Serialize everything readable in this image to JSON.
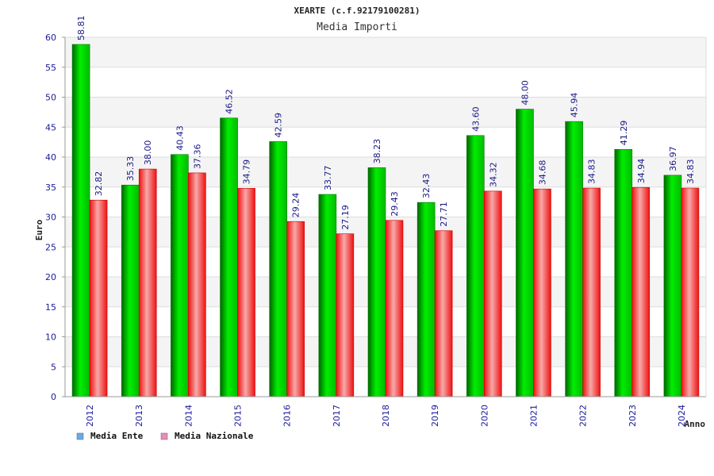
{
  "chart_data": {
    "type": "bar",
    "title": "XEARTE (c.f.92179100281)",
    "subtitle": "Media Importi",
    "xlabel": "Anno",
    "ylabel": "Euro",
    "ylim": [
      0,
      60
    ],
    "yticks": [
      0,
      5,
      10,
      15,
      20,
      25,
      30,
      35,
      40,
      45,
      50,
      55,
      60
    ],
    "grid": true,
    "legend_position": "bottom-left",
    "categories": [
      "2012",
      "2013",
      "2014",
      "2015",
      "2016",
      "2017",
      "2018",
      "2019",
      "2020",
      "2021",
      "2022",
      "2023",
      "2024"
    ],
    "series": [
      {
        "name": "Media Ente",
        "legend_color": "#66aaee",
        "bar_color": "#00cc00",
        "values": [
          58.81,
          35.33,
          40.43,
          46.52,
          42.59,
          33.77,
          38.23,
          32.43,
          43.6,
          48.0,
          45.94,
          41.29,
          36.97
        ],
        "labels": [
          "58.81",
          "35.33",
          "40.43",
          "46.52",
          "42.59",
          "33.77",
          "38.23",
          "32.43",
          "43.60",
          "48.00",
          "45.94",
          "41.29",
          "36.97"
        ]
      },
      {
        "name": "Media Nazionale",
        "legend_color": "#ee88bb",
        "bar_color": "#ee1111",
        "values": [
          32.82,
          38.0,
          37.36,
          34.79,
          29.24,
          27.19,
          29.43,
          27.71,
          34.32,
          34.68,
          34.83,
          34.94,
          34.83
        ],
        "labels": [
          "32.82",
          "38.00",
          "37.36",
          "34.79",
          "29.24",
          "27.19",
          "29.43",
          "27.71",
          "34.32",
          "34.68",
          "34.83",
          "34.94",
          "34.83"
        ]
      }
    ]
  }
}
